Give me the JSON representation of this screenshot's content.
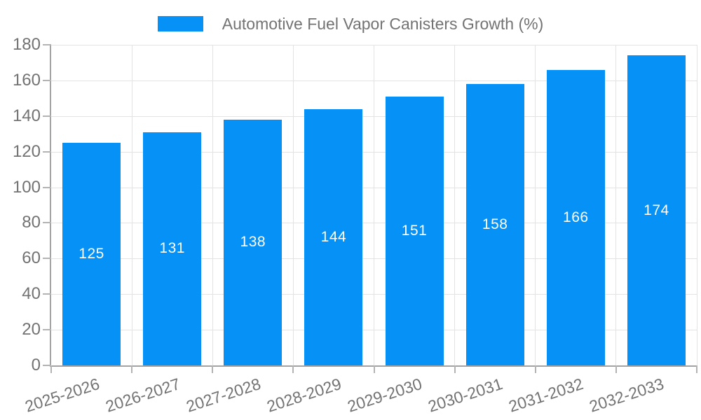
{
  "chart_data": {
    "type": "bar",
    "title": "Automotive Fuel Vapor Canisters Growth (%)",
    "legend": "Automotive Fuel Vapor Canisters Growth (%)",
    "legend_position": "top-center",
    "categories": [
      "2025-2026",
      "2026-2027",
      "2027-2028",
      "2028-2029",
      "2029-2030",
      "2030-2031",
      "2031-2032",
      "2032-2033"
    ],
    "values": [
      125,
      131,
      138,
      144,
      151,
      158,
      166,
      174
    ],
    "bar_value_labels_shown": true,
    "xlabel": "",
    "ylabel": "",
    "ylim": [
      0,
      180
    ],
    "yticks": [
      0,
      20,
      40,
      60,
      80,
      100,
      120,
      140,
      160,
      180
    ],
    "grid": true,
    "x_label_rotation_deg": -18,
    "colors": {
      "bar": "#0591f5",
      "value_label": "#ffffff",
      "axis_text": "#737373",
      "legend_text": "#737373",
      "grid_line": "#e3e3e3",
      "axis_line": "#a3a3a3",
      "tick_line": "#b3b3b3",
      "background": "#ffffff"
    }
  }
}
